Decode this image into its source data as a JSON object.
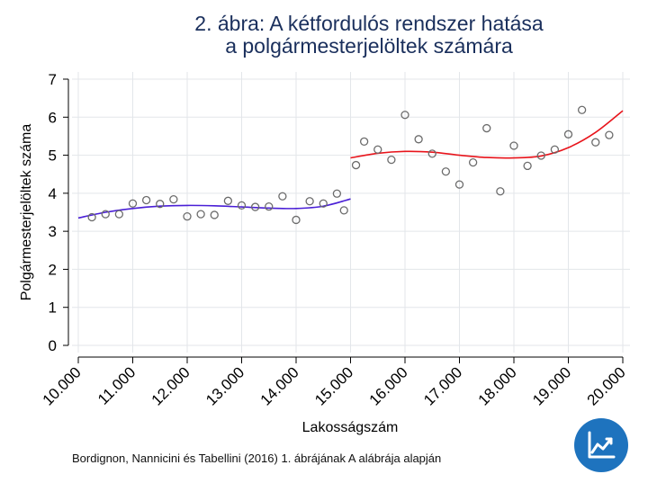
{
  "title_line1": "2. ábra: A kétfordulós rendszer hatása",
  "title_line2": "a polgármesterjelöltek számára",
  "source": "Bordignon, Nannicini és Tabellini (2016) 1. ábrájának A alábrája alapján",
  "logo_icon": "trend-chart-icon",
  "colors": {
    "title": "#1a2f5c",
    "left_fit": "#4a1fd6",
    "right_fit": "#e8141b",
    "points": "#6b6b6b",
    "grid": "#e3e6ea",
    "logo": "#1e73be"
  },
  "chart_data": {
    "type": "scatter",
    "xlabel": "Lakosságszám",
    "ylabel": "Polgármesterjelöltek száma",
    "xlim": [
      10000,
      20000
    ],
    "ylim": [
      0,
      7
    ],
    "xticks": [
      10000,
      11000,
      12000,
      13000,
      14000,
      15000,
      16000,
      17000,
      18000,
      19000,
      20000
    ],
    "xtick_labels": [
      "10.000",
      "11.000",
      "12.000",
      "13.000",
      "14.000",
      "15.000",
      "16.000",
      "17.000",
      "18.000",
      "19.000",
      "20.000"
    ],
    "yticks": [
      0,
      1,
      2,
      3,
      4,
      5,
      6,
      7
    ],
    "ytick_labels": [
      "0",
      "1",
      "2",
      "3",
      "4",
      "5",
      "6",
      "7"
    ],
    "grid": true,
    "series": [
      {
        "kind": "scatter",
        "x": [
          10250,
          10500,
          10750,
          11000,
          11250,
          11500,
          11750,
          12000,
          12250,
          12500,
          12750,
          13000,
          13250,
          13500,
          13750,
          14000,
          14250,
          14500,
          14750,
          14880,
          15100,
          15250,
          15500,
          15750,
          16000,
          16250,
          16500,
          16750,
          17000,
          17250,
          17500,
          17750,
          18000,
          18250,
          18500,
          18750,
          19000,
          19250,
          19500,
          19750
        ],
        "y": [
          3.37,
          3.45,
          3.45,
          3.73,
          3.82,
          3.72,
          3.84,
          3.39,
          3.45,
          3.43,
          3.8,
          3.68,
          3.64,
          3.65,
          3.92,
          3.3,
          3.79,
          3.73,
          3.99,
          3.55,
          4.74,
          5.36,
          5.15,
          4.88,
          6.06,
          5.42,
          5.04,
          4.57,
          4.23,
          4.81,
          5.71,
          4.05,
          5.25,
          4.72,
          4.99,
          5.15,
          5.55,
          6.19,
          5.34,
          5.53
        ]
      },
      {
        "kind": "line",
        "x": [
          10000,
          10500,
          11000,
          11500,
          12000,
          12500,
          13000,
          13500,
          14000,
          14500,
          15000
        ],
        "y": [
          3.35,
          3.5,
          3.6,
          3.66,
          3.68,
          3.67,
          3.64,
          3.61,
          3.6,
          3.66,
          3.85
        ]
      },
      {
        "kind": "line",
        "x": [
          15000,
          15500,
          16000,
          16500,
          17000,
          17500,
          18000,
          18500,
          19000,
          19500,
          20000
        ],
        "y": [
          4.93,
          5.05,
          5.1,
          5.08,
          5.0,
          4.94,
          4.93,
          4.98,
          5.2,
          5.6,
          6.17
        ]
      }
    ]
  }
}
